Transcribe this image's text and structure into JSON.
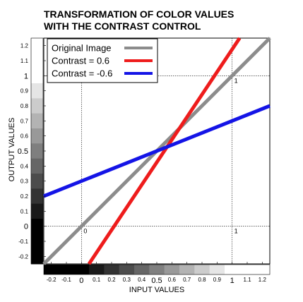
{
  "chart_data": {
    "type": "line",
    "title_lines": [
      "TRANSFORMATION OF COLOR VALUES",
      "WITH THE CONTRAST CONTROL"
    ],
    "xlabel": "INPUT VALUES",
    "ylabel": "OUTPUT VALUES",
    "xlim": [
      -0.25,
      1.25
    ],
    "ylim": [
      -0.25,
      1.25
    ],
    "x_ticks": [
      {
        "value": -0.2,
        "label": "-0.2",
        "big": false
      },
      {
        "value": -0.1,
        "label": "-0.1",
        "big": false
      },
      {
        "value": 0,
        "label": "0",
        "big": true
      },
      {
        "value": 0.1,
        "label": "0.1",
        "big": false
      },
      {
        "value": 0.2,
        "label": "0.2",
        "big": false
      },
      {
        "value": 0.3,
        "label": "0.3",
        "big": false
      },
      {
        "value": 0.4,
        "label": "0.4",
        "big": false
      },
      {
        "value": 0.5,
        "label": "0.5",
        "big": true
      },
      {
        "value": 0.6,
        "label": "0.6",
        "big": false
      },
      {
        "value": 0.7,
        "label": "0.7",
        "big": false
      },
      {
        "value": 0.8,
        "label": "0.8",
        "big": false
      },
      {
        "value": 0.9,
        "label": "0.9",
        "big": false
      },
      {
        "value": 1,
        "label": "1",
        "big": true
      },
      {
        "value": 1.1,
        "label": "1.1",
        "big": false
      },
      {
        "value": 1.2,
        "label": "1.2",
        "big": false
      }
    ],
    "y_ticks": [
      {
        "value": -0.2,
        "label": "-0.2",
        "big": false
      },
      {
        "value": -0.1,
        "label": "-0.1",
        "big": false
      },
      {
        "value": 0,
        "label": "0",
        "big": true
      },
      {
        "value": 0.1,
        "label": "0.1",
        "big": false
      },
      {
        "value": 0.2,
        "label": "0.2",
        "big": false
      },
      {
        "value": 0.3,
        "label": "0.3",
        "big": false
      },
      {
        "value": 0.4,
        "label": "0.4",
        "big": false
      },
      {
        "value": 0.5,
        "label": "0.5",
        "big": true
      },
      {
        "value": 0.6,
        "label": "0.6",
        "big": false
      },
      {
        "value": 0.7,
        "label": "0.7",
        "big": false
      },
      {
        "value": 0.8,
        "label": "0.8",
        "big": false
      },
      {
        "value": 0.9,
        "label": "0.9",
        "big": false
      },
      {
        "value": 1,
        "label": "1",
        "big": true
      },
      {
        "value": 1.1,
        "label": "1.1",
        "big": false
      },
      {
        "value": 1.2,
        "label": "1.2",
        "big": false
      }
    ],
    "grayscale_steps": [
      -0.2,
      -0.1,
      0,
      0.1,
      0.2,
      0.3,
      0.4,
      0.5,
      0.6,
      0.7,
      0.8,
      0.9,
      1,
      1.1,
      1.2
    ],
    "reference_lines": [
      0,
      1
    ],
    "annotations": [
      {
        "x": 0,
        "y": 0,
        "text": "0"
      },
      {
        "x": 1,
        "y": 0,
        "text": "1"
      },
      {
        "x": 1,
        "y": 1,
        "text": "1"
      }
    ],
    "series": [
      {
        "name": "Original Image",
        "color": "#8c8c8c",
        "x": [
          -0.25,
          1.25
        ],
        "y": [
          -0.25,
          1.25
        ]
      },
      {
        "name": "Contrast = 0.6",
        "color": "#ee1c1c",
        "x": [
          0.05,
          1.05
        ],
        "y": [
          -0.25,
          1.25
        ]
      },
      {
        "name": "Contrast = -0.6",
        "color": "#1414e6",
        "x": [
          -0.25,
          1.25
        ],
        "y": [
          0.2,
          0.8
        ]
      }
    ],
    "legend_position": "top-left",
    "grid": false
  }
}
